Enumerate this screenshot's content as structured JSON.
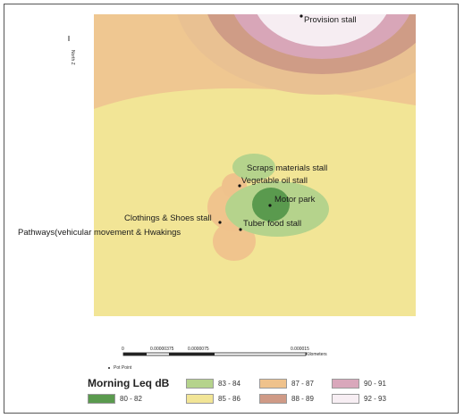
{
  "map": {
    "north_label": "North Z",
    "points": [
      {
        "name": "Provision stall"
      },
      {
        "name": "Scraps materials stall"
      },
      {
        "name": "Vegetable oil stall"
      },
      {
        "name": "Motor park"
      },
      {
        "name": "Clothings & Shoes stall"
      },
      {
        "name": "Tuber food stall"
      },
      {
        "name": "Pathways(vehicular movement & Hwakings"
      }
    ]
  },
  "scale_bar": {
    "ticks": [
      "0",
      "0.00000375",
      "0.0000075",
      "0.000015"
    ],
    "unit": "Kilometers"
  },
  "legend": {
    "title": "Morning Leq dB",
    "point_label": "Pot Point",
    "classes": [
      {
        "range": "80 - 82",
        "color": "#5a9a4e"
      },
      {
        "range": "83 - 84",
        "color": "#b5d38c"
      },
      {
        "range": "85 - 86",
        "color": "#f2e596"
      },
      {
        "range": "87 - 87",
        "color": "#efc28c"
      },
      {
        "range": "88 - 89",
        "color": "#cf9a86"
      },
      {
        "range": "90 - 91",
        "color": "#d9a7bb"
      },
      {
        "range": "92 - 93",
        "color": "#f7eef3"
      }
    ]
  }
}
